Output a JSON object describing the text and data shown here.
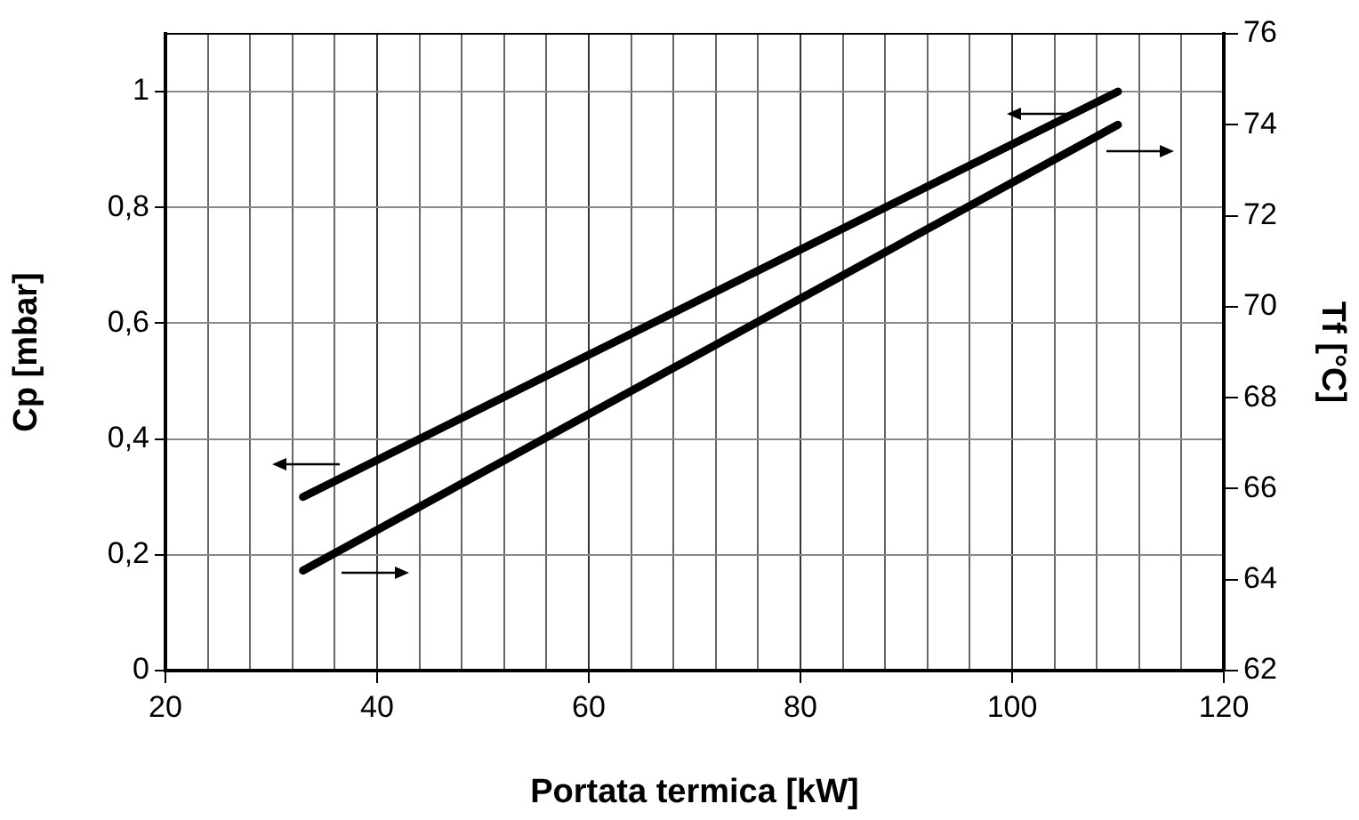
{
  "chart_data": {
    "type": "line",
    "xlabel": "Portata termica [kW]",
    "ylabel": "Cp [mbar]",
    "y2label": "Tf [°C]",
    "xlim": [
      20,
      120
    ],
    "xticks": [
      20,
      {
        "value": 24,
        "label": null
      },
      {
        "value": 28,
        "label": null
      },
      {
        "value": 32,
        "label": null
      },
      {
        "value": 36,
        "label": null
      },
      40,
      {
        "value": 44,
        "label": null
      },
      {
        "value": 48,
        "label": null
      },
      {
        "value": 52,
        "label": null
      },
      {
        "value": 56,
        "label": null
      },
      60,
      {
        "value": 64,
        "label": null
      },
      {
        "value": 68,
        "label": null
      },
      {
        "value": 72,
        "label": null
      },
      {
        "value": 76,
        "label": null
      },
      80,
      {
        "value": 84,
        "label": null
      },
      {
        "value": 88,
        "label": null
      },
      {
        "value": 92,
        "label": null
      },
      {
        "value": 96,
        "label": null
      },
      100,
      {
        "value": 104,
        "label": null
      },
      {
        "value": 108,
        "label": null
      },
      {
        "value": 112,
        "label": null
      },
      {
        "value": 116,
        "label": null
      },
      120
    ],
    "ylim": [
      0,
      1.1
    ],
    "yticks": [
      0,
      {
        "value": 0.2,
        "label": "0,2"
      },
      {
        "value": 0.4,
        "label": "0,4"
      },
      {
        "value": 0.6,
        "label": "0,6"
      },
      {
        "value": 0.8,
        "label": "0,8"
      },
      1
    ],
    "y2lim": [
      62,
      76
    ],
    "y2ticks": [
      62,
      64,
      66,
      68,
      70,
      72,
      74,
      76
    ],
    "grid": true,
    "marker": "none",
    "x": [
      33,
      110
    ],
    "series": [
      {
        "color": "#000000",
        "values": [
          0.3,
          1.0
        ]
      },
      {
        "color": "#000000",
        "axis": "y2",
        "values": [
          64.2,
          74.0
        ]
      }
    ]
  }
}
